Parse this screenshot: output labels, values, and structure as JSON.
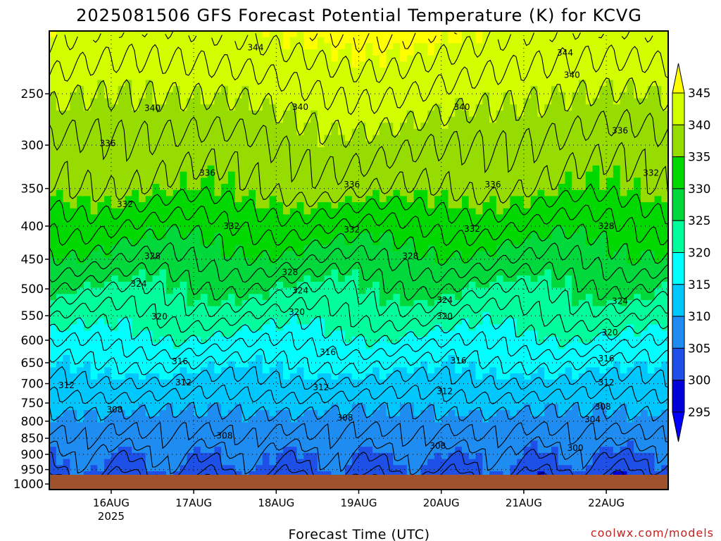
{
  "chart_data": {
    "type": "heatmap",
    "title": "2025081506 GFS Forecast Potential Temperature (K) for KCVG",
    "xlabel": "Forecast Time (UTC)",
    "ylabel": "",
    "credit": "coolwx.com/models",
    "x_ticks": [
      {
        "label": "16AUG",
        "sub": "2025",
        "hours": 18
      },
      {
        "label": "17AUG",
        "sub": "",
        "hours": 42
      },
      {
        "label": "18AUG",
        "sub": "",
        "hours": 66
      },
      {
        "label": "19AUG",
        "sub": "",
        "hours": 90
      },
      {
        "label": "20AUG",
        "sub": "",
        "hours": 114
      },
      {
        "label": "21AUG",
        "sub": "",
        "hours": 138
      },
      {
        "label": "22AUG",
        "sub": "",
        "hours": 162
      }
    ],
    "xlim_hours": [
      0,
      180
    ],
    "y_ticks": [
      250,
      300,
      350,
      400,
      450,
      500,
      550,
      600,
      650,
      700,
      750,
      800,
      850,
      900,
      950,
      1000
    ],
    "ylim_hpa": [
      200,
      1020
    ],
    "y_scale": "log-pressure (inverted)",
    "grid": "dotted",
    "colorbar": {
      "labels": [
        "295",
        "300",
        "305",
        "310",
        "315",
        "320",
        "325",
        "330",
        "335",
        "340",
        "345"
      ],
      "colors": [
        "#0000ff",
        "#0000d8",
        "#1e50e8",
        "#1e8cf0",
        "#00c8ff",
        "#00ffff",
        "#00ff9c",
        "#00d83c",
        "#00d800",
        "#96dc00",
        "#d2ff00",
        "#ffff00"
      ]
    },
    "profile": {
      "pressure_hpa": [
        1000,
        950,
        900,
        850,
        800,
        750,
        700,
        650,
        600,
        550,
        500,
        450,
        400,
        350,
        300,
        250,
        200
      ],
      "theta_k": [
        301,
        304,
        305.5,
        307.5,
        309,
        311,
        313.5,
        316,
        319,
        322,
        325,
        328.5,
        332,
        336,
        338,
        341,
        345
      ]
    },
    "contour_labels": [
      {
        "t": "344",
        "h": 60,
        "p": 212
      },
      {
        "t": "344",
        "h": 150,
        "p": 216
      },
      {
        "t": "340",
        "h": 30,
        "p": 263
      },
      {
        "t": "340",
        "h": 73,
        "p": 262
      },
      {
        "t": "340",
        "h": 120,
        "p": 262
      },
      {
        "t": "340",
        "h": 152,
        "p": 234
      },
      {
        "t": "336",
        "h": 166,
        "p": 285
      },
      {
        "t": "336",
        "h": 17,
        "p": 298
      },
      {
        "t": "336",
        "h": 46,
        "p": 331
      },
      {
        "t": "336",
        "h": 88,
        "p": 345
      },
      {
        "t": "336",
        "h": 129,
        "p": 345
      },
      {
        "t": "332",
        "h": 175,
        "p": 331
      },
      {
        "t": "332",
        "h": 22,
        "p": 370
      },
      {
        "t": "332",
        "h": 53,
        "p": 400
      },
      {
        "t": "332",
        "h": 88,
        "p": 405
      },
      {
        "t": "332",
        "h": 123,
        "p": 404
      },
      {
        "t": "328",
        "h": 162,
        "p": 400
      },
      {
        "t": "328",
        "h": 30,
        "p": 445
      },
      {
        "t": "328",
        "h": 70,
        "p": 471
      },
      {
        "t": "328",
        "h": 105,
        "p": 445
      },
      {
        "t": "324",
        "h": 26,
        "p": 491
      },
      {
        "t": "324",
        "h": 73,
        "p": 503
      },
      {
        "t": "324",
        "h": 115,
        "p": 520
      },
      {
        "t": "324",
        "h": 166,
        "p": 522
      },
      {
        "t": "320",
        "h": 32,
        "p": 552
      },
      {
        "t": "320",
        "h": 72,
        "p": 543
      },
      {
        "t": "320",
        "h": 115,
        "p": 551
      },
      {
        "t": "320",
        "h": 163,
        "p": 584
      },
      {
        "t": "316",
        "h": 38,
        "p": 647
      },
      {
        "t": "316",
        "h": 81,
        "p": 626
      },
      {
        "t": "316",
        "h": 119,
        "p": 645
      },
      {
        "t": "316",
        "h": 162,
        "p": 640
      },
      {
        "t": "312",
        "h": 5,
        "p": 704
      },
      {
        "t": "312",
        "h": 39,
        "p": 697
      },
      {
        "t": "312",
        "h": 79,
        "p": 710
      },
      {
        "t": "312",
        "h": 115,
        "p": 719
      },
      {
        "t": "312",
        "h": 162,
        "p": 697
      },
      {
        "t": "308",
        "h": 19,
        "p": 768
      },
      {
        "t": "308",
        "h": 86,
        "p": 790
      },
      {
        "t": "308",
        "h": 51,
        "p": 842
      },
      {
        "t": "308",
        "h": 113,
        "p": 873
      },
      {
        "t": "308",
        "h": 161,
        "p": 760
      },
      {
        "t": "304",
        "h": 158,
        "p": 795
      },
      {
        "t": "300",
        "h": 153,
        "p": 880
      }
    ]
  }
}
